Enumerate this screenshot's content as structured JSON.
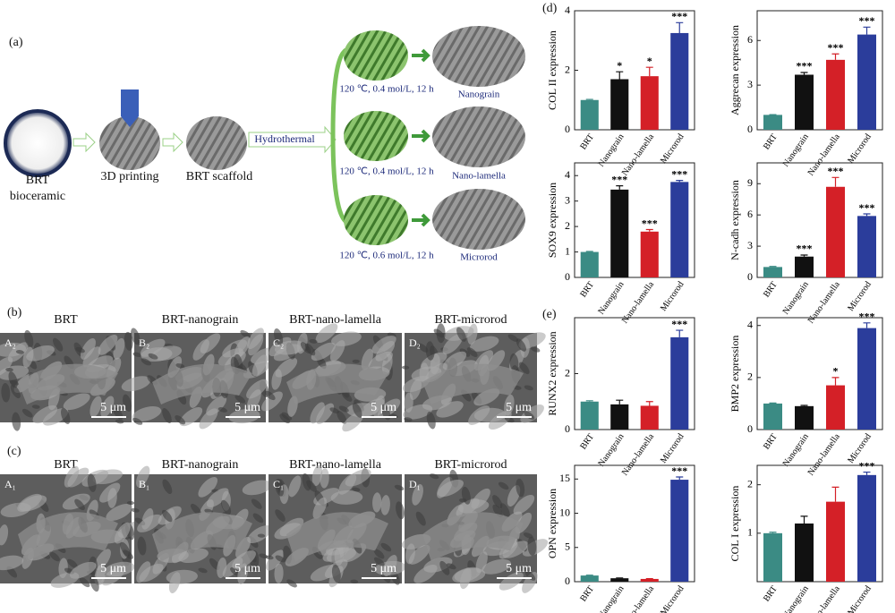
{
  "figure": {
    "panels": {
      "a": "(a)",
      "b": "(b)",
      "c": "(c)",
      "d": "(d)",
      "e": "(e)"
    },
    "schematic": {
      "material": "BRT",
      "material_kind": "bioceramic",
      "printing": "3D printing",
      "scaffold": "BRT scaffold",
      "hydrothermal": "Hydrothermal",
      "conditions": [
        "120 ℃, 0.4 mol/L, 12 h",
        "120 ℃, 0.4 mol/L, 12 h",
        "120 ℃, 0.6 mol/L, 12 h"
      ],
      "morphologies": [
        "Nanograin",
        "Nano-lamella",
        "Microrod"
      ]
    },
    "row_b": {
      "titles": [
        "BRT",
        "BRT-nanograin",
        "BRT-nano-lamella",
        "BRT-microrod"
      ],
      "tags": [
        "A₂",
        "B₂",
        "C₂",
        "D₂"
      ]
    },
    "row_c": {
      "titles": [
        "BRT",
        "BRT-nanograin",
        "BRT-nano-lamella",
        "BRT-microrod"
      ],
      "tags": [
        "A₁",
        "B₁",
        "C₁",
        "D₁"
      ]
    },
    "scale": "5 μm"
  },
  "chart_data": [
    {
      "type": "bar",
      "ylabel": "COL II expression",
      "categories": [
        "BRT",
        "Nanograin",
        "Nano-lamella",
        "Microrod"
      ],
      "values": [
        1,
        1.7,
        1.8,
        3.25
      ],
      "errors": [
        0.02,
        0.25,
        0.3,
        0.35
      ],
      "annotations": [
        null,
        "*",
        "*",
        "***"
      ],
      "colors": [
        "#3b8b84",
        "#111111",
        "#d42027",
        "#2b3d9b"
      ],
      "ylim": [
        0,
        4
      ],
      "yticks": [
        0,
        2,
        4
      ]
    },
    {
      "type": "bar",
      "ylabel": "Aggrecan expression",
      "categories": [
        "BRT",
        "Nanograin",
        "Nano-lamella",
        "Microrod"
      ],
      "values": [
        1,
        3.7,
        4.7,
        6.4
      ],
      "errors": [
        0.02,
        0.15,
        0.4,
        0.5
      ],
      "annotations": [
        null,
        "***",
        "***",
        "***"
      ],
      "colors": [
        "#3b8b84",
        "#111111",
        "#d42027",
        "#2b3d9b"
      ],
      "ylim": [
        0,
        8
      ],
      "yticks": [
        0,
        3,
        6
      ]
    },
    {
      "type": "bar",
      "ylabel": "SOX9 expression",
      "categories": [
        "BRT",
        "Nanograin",
        "Nano-lamella",
        "Microrod"
      ],
      "values": [
        1,
        3.45,
        1.8,
        3.75
      ],
      "errors": [
        0.02,
        0.15,
        0.08,
        0.06
      ],
      "annotations": [
        null,
        "***",
        "***",
        "***"
      ],
      "colors": [
        "#3b8b84",
        "#111111",
        "#d42027",
        "#2b3d9b"
      ],
      "ylim": [
        0,
        4.5
      ],
      "yticks": [
        0,
        1,
        2,
        3,
        4
      ]
    },
    {
      "type": "bar",
      "ylabel": "N-cadh expression",
      "categories": [
        "BRT",
        "Nanograin",
        "Nano-lamella",
        "Microrod"
      ],
      "values": [
        1,
        2,
        8.7,
        5.9
      ],
      "errors": [
        0.05,
        0.15,
        0.9,
        0.2
      ],
      "annotations": [
        null,
        "***",
        "***",
        "***"
      ],
      "colors": [
        "#3b8b84",
        "#111111",
        "#d42027",
        "#2b3d9b"
      ],
      "ylim": [
        0,
        11
      ],
      "yticks": [
        0,
        3,
        6,
        9
      ]
    },
    {
      "type": "bar",
      "ylabel": "RUNX2 expression",
      "categories": [
        "BRT",
        "Nanograin",
        "Nano-lamella",
        "Microrod"
      ],
      "values": [
        1,
        0.9,
        0.85,
        3.3
      ],
      "errors": [
        0.03,
        0.15,
        0.15,
        0.25
      ],
      "annotations": [
        null,
        null,
        null,
        "***"
      ],
      "colors": [
        "#3b8b84",
        "#111111",
        "#d42027",
        "#2b3d9b"
      ],
      "ylim": [
        0,
        4
      ],
      "yticks": [
        0,
        2
      ]
    },
    {
      "type": "bar",
      "ylabel": "BMP2 expression",
      "categories": [
        "BRT",
        "Nanograin",
        "Nano-lamella",
        "Microrod"
      ],
      "values": [
        1,
        0.9,
        1.7,
        3.9
      ],
      "errors": [
        0.02,
        0.03,
        0.3,
        0.2
      ],
      "annotations": [
        null,
        null,
        "*",
        "***"
      ],
      "colors": [
        "#3b8b84",
        "#111111",
        "#d42027",
        "#2b3d9b"
      ],
      "ylim": [
        0,
        4.3
      ],
      "yticks": [
        0,
        2,
        4
      ]
    },
    {
      "type": "bar",
      "ylabel": "OPN expression",
      "categories": [
        "BRT",
        "Nanograin",
        "Nano-lamella",
        "Microrod"
      ],
      "values": [
        0.9,
        0.5,
        0.4,
        14.9
      ],
      "errors": [
        0.05,
        0.05,
        0.05,
        0.4
      ],
      "annotations": [
        null,
        null,
        null,
        "***"
      ],
      "colors": [
        "#3b8b84",
        "#111111",
        "#d42027",
        "#2b3d9b"
      ],
      "ylim": [
        0,
        17
      ],
      "yticks": [
        0,
        5,
        10,
        15
      ]
    },
    {
      "type": "bar",
      "ylabel": "COL I expression",
      "categories": [
        "BRT",
        "Nanograin",
        "Nano-lamella",
        "Microrod"
      ],
      "values": [
        1,
        1.2,
        1.65,
        2.2
      ],
      "errors": [
        0.02,
        0.15,
        0.3,
        0.06
      ],
      "annotations": [
        null,
        null,
        null,
        "***"
      ],
      "colors": [
        "#3b8b84",
        "#111111",
        "#d42027",
        "#2b3d9b"
      ],
      "ylim": [
        0,
        2.4
      ],
      "yticks": [
        1,
        2
      ]
    }
  ]
}
